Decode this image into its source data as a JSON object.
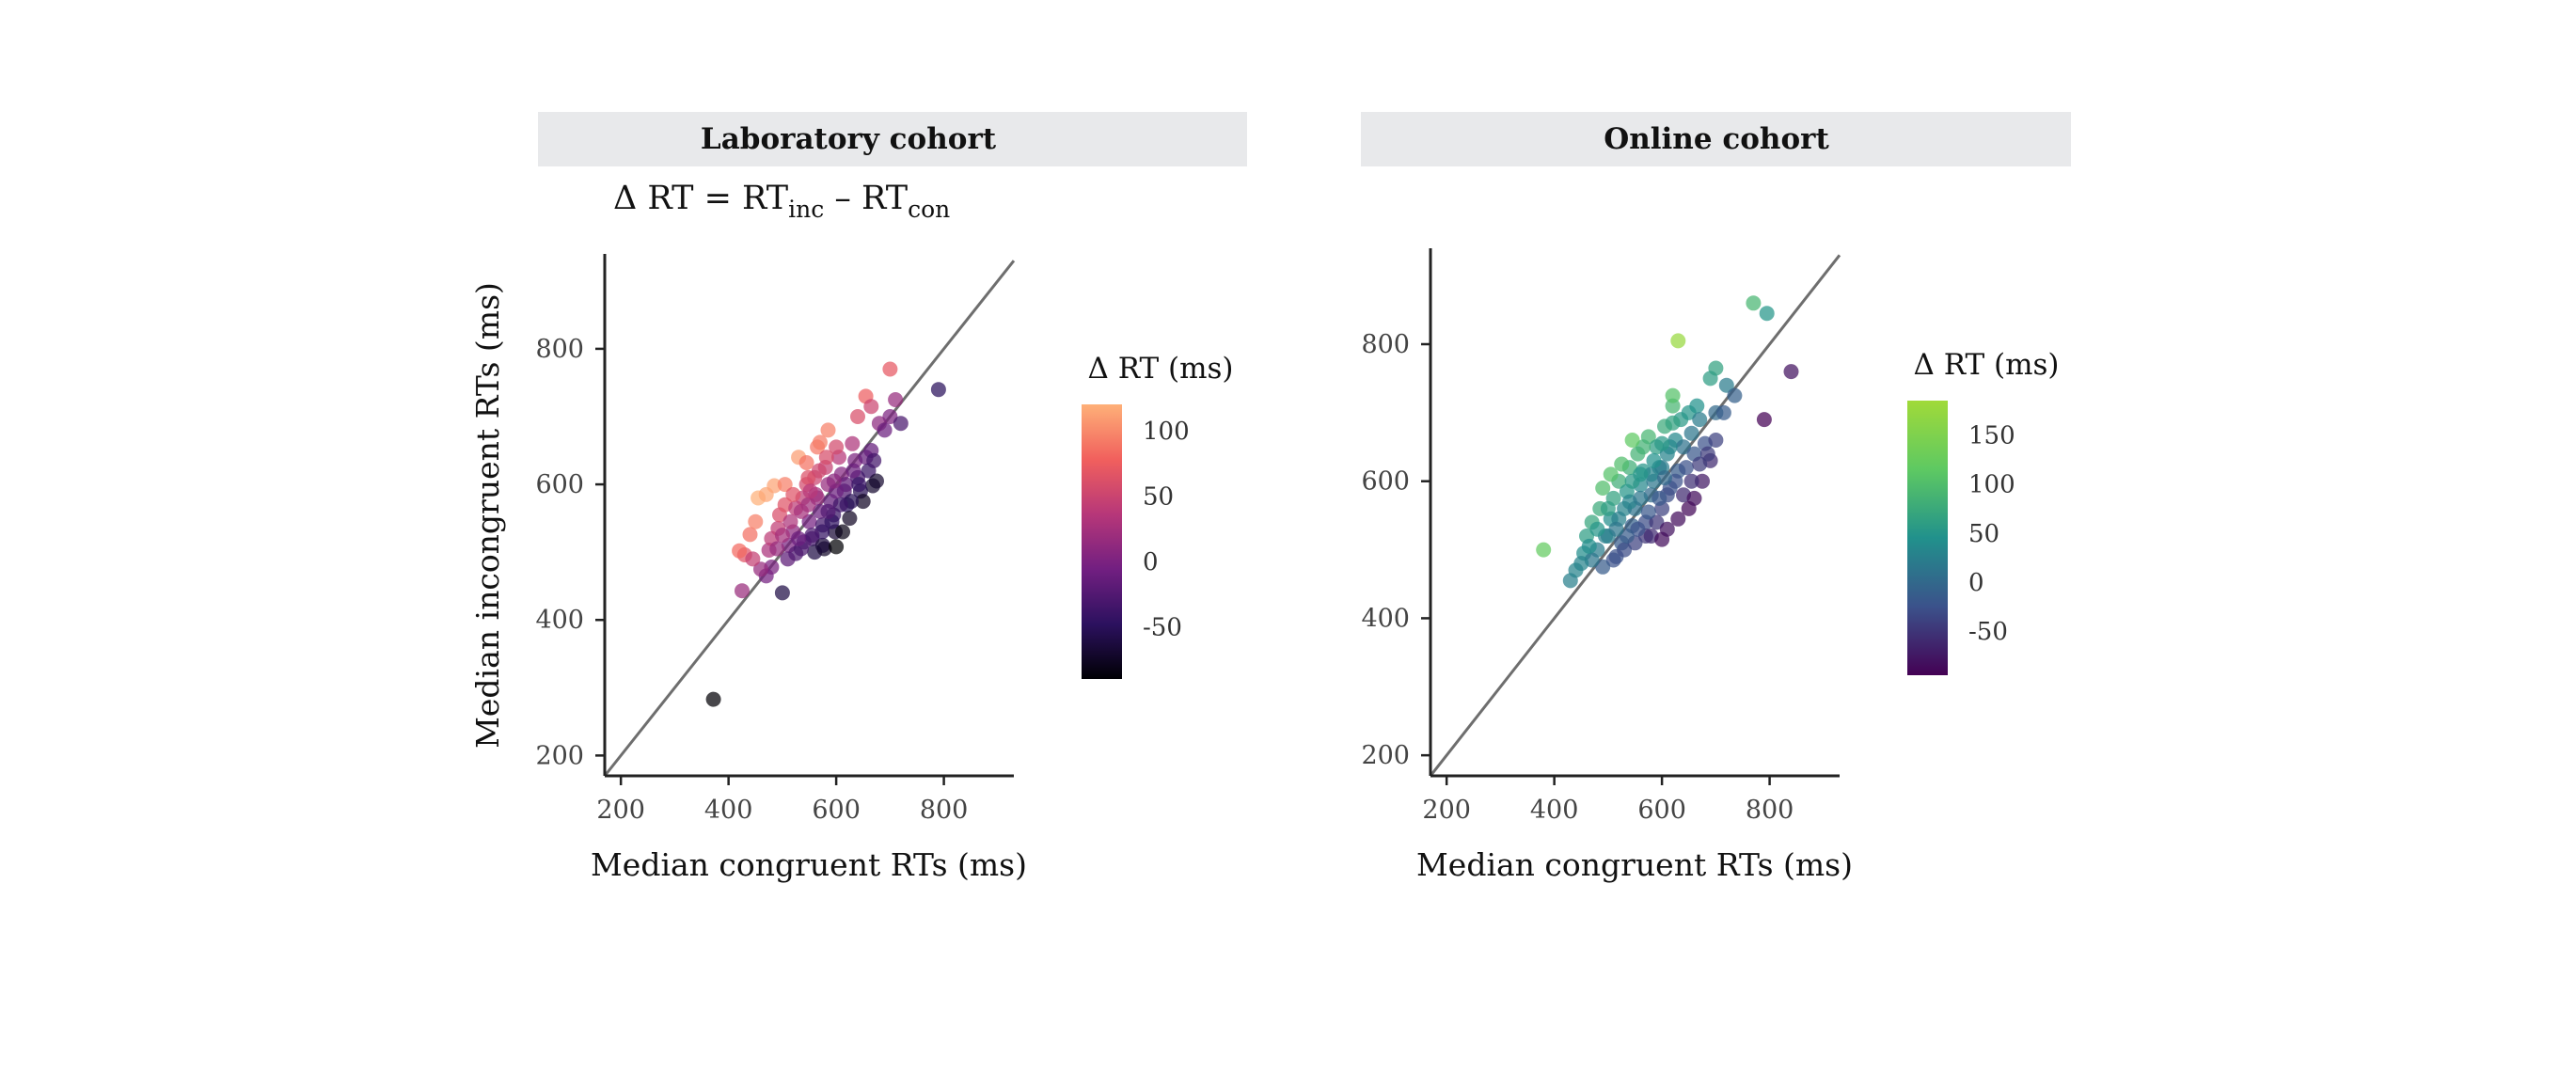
{
  "formula": {
    "lhs": "Δ RT = RT",
    "sub1": "inc",
    "mid": " – RT",
    "sub2": "con"
  },
  "chart_data": [
    {
      "type": "scatter",
      "panel_title": "Laboratory cohort",
      "xlabel": "Median congruent RTs (ms)",
      "ylabel": "Median incongruent RTs (ms)",
      "xlim": [
        170,
        930
      ],
      "ylim": [
        170,
        940
      ],
      "xticks": [
        200,
        400,
        600,
        800
      ],
      "yticks": [
        200,
        400,
        600,
        800
      ],
      "reference_line": "identity (y = x)",
      "colorbar": {
        "title": "Δ RT (ms)",
        "range": [
          -90,
          120
        ],
        "ticks": [
          100,
          50,
          0,
          -50
        ],
        "colors": [
          "#000004",
          "#2c115f",
          "#721f81",
          "#b73779",
          "#f1605d",
          "#feb078"
        ]
      },
      "points": [
        [
          372,
          283
        ],
        [
          790,
          740
        ],
        [
          700,
          770
        ],
        [
          668,
          598
        ],
        [
          640,
          700
        ],
        [
          425,
          443
        ],
        [
          430,
          496
        ],
        [
          420,
          502
        ],
        [
          440,
          526
        ],
        [
          450,
          545
        ],
        [
          455,
          580
        ],
        [
          470,
          585
        ],
        [
          485,
          598
        ],
        [
          505,
          600
        ],
        [
          530,
          640
        ],
        [
          545,
          632
        ],
        [
          475,
          503
        ],
        [
          480,
          520
        ],
        [
          492,
          535
        ],
        [
          495,
          555
        ],
        [
          505,
          570
        ],
        [
          512,
          510
        ],
        [
          520,
          530
        ],
        [
          525,
          565
        ],
        [
          538,
          580
        ],
        [
          545,
          600
        ],
        [
          550,
          545
        ],
        [
          555,
          520
        ],
        [
          560,
          610
        ],
        [
          565,
          580
        ],
        [
          570,
          560
        ],
        [
          575,
          540
        ],
        [
          580,
          625
        ],
        [
          585,
          600
        ],
        [
          590,
          575
        ],
        [
          595,
          555
        ],
        [
          598,
          530
        ],
        [
          605,
          640
        ],
        [
          610,
          615
        ],
        [
          615,
          590
        ],
        [
          620,
          570
        ],
        [
          625,
          550
        ],
        [
          630,
          660
        ],
        [
          635,
          635
        ],
        [
          640,
          610
        ],
        [
          645,
          590
        ],
        [
          650,
          575
        ],
        [
          655,
          640
        ],
        [
          660,
          620
        ],
        [
          665,
          650
        ],
        [
          670,
          635
        ],
        [
          675,
          605
        ],
        [
          680,
          690
        ],
        [
          690,
          680
        ],
        [
          700,
          700
        ],
        [
          710,
          725
        ],
        [
          720,
          690
        ],
        [
          655,
          730
        ],
        [
          665,
          715
        ],
        [
          600,
          655
        ],
        [
          585,
          680
        ],
        [
          565,
          655
        ],
        [
          548,
          610
        ],
        [
          540,
          515
        ],
        [
          560,
          500
        ],
        [
          578,
          505
        ],
        [
          500,
          440
        ],
        [
          470,
          465
        ],
        [
          480,
          478
        ],
        [
          510,
          490
        ],
        [
          525,
          498
        ],
        [
          535,
          505
        ],
        [
          575,
          510
        ],
        [
          600,
          508
        ],
        [
          612,
          530
        ],
        [
          628,
          575
        ],
        [
          548,
          570
        ],
        [
          562,
          585
        ],
        [
          520,
          585
        ],
        [
          535,
          560
        ],
        [
          500,
          525
        ],
        [
          515,
          545
        ],
        [
          490,
          505
        ],
        [
          460,
          475
        ],
        [
          445,
          490
        ],
        [
          618,
          600
        ],
        [
          632,
          620
        ],
        [
          642,
          600
        ],
        [
          608,
          570
        ],
        [
          592,
          545
        ],
        [
          574,
          530
        ],
        [
          555,
          525
        ],
        [
          530,
          520
        ],
        [
          585,
          560
        ],
        [
          600,
          590
        ],
        [
          568,
          620
        ],
        [
          552,
          590
        ],
        [
          582,
          640
        ],
        [
          570,
          662
        ],
        [
          596,
          605
        ]
      ]
    },
    {
      "type": "scatter",
      "panel_title": "Online cohort",
      "xlabel": "Median congruent RTs (ms)",
      "ylabel": "Median incongruent RTs (ms)",
      "xlim": [
        170,
        930
      ],
      "ylim": [
        170,
        940
      ],
      "xticks": [
        200,
        400,
        600,
        800
      ],
      "yticks": [
        200,
        400,
        600,
        800
      ],
      "reference_line": "identity (y = x)",
      "colorbar": {
        "title": "Δ RT (ms)",
        "range": [
          -95,
          185
        ],
        "ticks": [
          150,
          100,
          50,
          0,
          -50
        ],
        "colors": [
          "#440154",
          "#3b528b",
          "#21918c",
          "#5ec962",
          "#a0da39"
        ]
      },
      "points": [
        [
          380,
          500
        ],
        [
          630,
          805
        ],
        [
          770,
          860
        ],
        [
          795,
          845
        ],
        [
          840,
          760
        ],
        [
          790,
          690
        ],
        [
          700,
          765
        ],
        [
          720,
          740
        ],
        [
          735,
          725
        ],
        [
          690,
          750
        ],
        [
          430,
          455
        ],
        [
          440,
          470
        ],
        [
          455,
          495
        ],
        [
          460,
          520
        ],
        [
          470,
          540
        ],
        [
          480,
          500
        ],
        [
          485,
          560
        ],
        [
          490,
          590
        ],
        [
          500,
          520
        ],
        [
          505,
          545
        ],
        [
          510,
          575
        ],
        [
          515,
          490
        ],
        [
          520,
          600
        ],
        [
          525,
          510
        ],
        [
          530,
          560
        ],
        [
          535,
          585
        ],
        [
          540,
          620
        ],
        [
          545,
          535
        ],
        [
          550,
          560
        ],
        [
          555,
          640
        ],
        [
          560,
          595
        ],
        [
          565,
          615
        ],
        [
          570,
          540
        ],
        [
          575,
          665
        ],
        [
          580,
          580
        ],
        [
          585,
          600
        ],
        [
          590,
          650
        ],
        [
          595,
          620
        ],
        [
          600,
          560
        ],
        [
          605,
          680
        ],
        [
          610,
          640
        ],
        [
          615,
          590
        ],
        [
          620,
          710
        ],
        [
          625,
          660
        ],
        [
          630,
          615
        ],
        [
          635,
          690
        ],
        [
          640,
          650
        ],
        [
          645,
          620
        ],
        [
          650,
          700
        ],
        [
          655,
          670
        ],
        [
          660,
          640
        ],
        [
          665,
          710
        ],
        [
          670,
          690
        ],
        [
          675,
          600
        ],
        [
          680,
          655
        ],
        [
          690,
          630
        ],
        [
          700,
          700
        ],
        [
          620,
          725
        ],
        [
          610,
          580
        ],
        [
          590,
          540
        ],
        [
          570,
          520
        ],
        [
          550,
          510
        ],
        [
          530,
          500
        ],
        [
          510,
          485
        ],
        [
          490,
          475
        ],
        [
          470,
          485
        ],
        [
          500,
          560
        ],
        [
          520,
          545
        ],
        [
          540,
          570
        ],
        [
          560,
          575
        ],
        [
          580,
          610
        ],
        [
          600,
          620
        ],
        [
          615,
          650
        ],
        [
          625,
          600
        ],
        [
          640,
          580
        ],
        [
          655,
          600
        ],
        [
          670,
          625
        ],
        [
          685,
          640
        ],
        [
          545,
          600
        ],
        [
          565,
          650
        ],
        [
          585,
          630
        ],
        [
          605,
          605
        ],
        [
          595,
          575
        ],
        [
          575,
          555
        ],
        [
          555,
          530
        ],
        [
          535,
          520
        ],
        [
          515,
          530
        ],
        [
          495,
          520
        ],
        [
          505,
          610
        ],
        [
          525,
          625
        ],
        [
          545,
          660
        ],
        [
          480,
          530
        ],
        [
          465,
          505
        ],
        [
          450,
          480
        ],
        [
          650,
          560
        ],
        [
          630,
          545
        ],
        [
          610,
          530
        ],
        [
          600,
          655
        ],
        [
          620,
          685
        ],
        [
          560,
          610
        ],
        [
          580,
          520
        ],
        [
          600,
          515
        ],
        [
          660,
          575
        ],
        [
          700,
          660
        ],
        [
          715,
          700
        ]
      ]
    }
  ]
}
